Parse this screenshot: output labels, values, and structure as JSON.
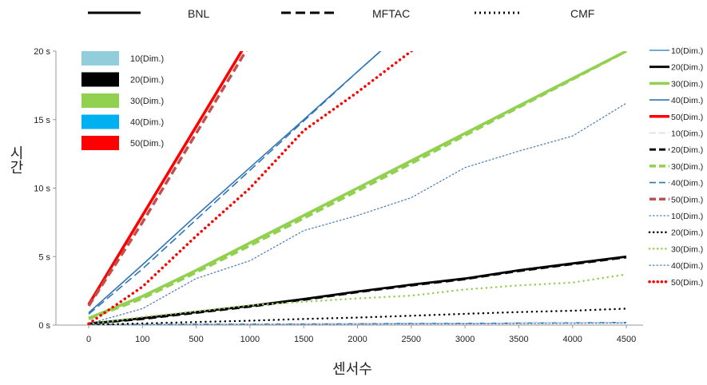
{
  "chart_data": {
    "type": "line",
    "xlabel": "센서수",
    "ylabel": "시간",
    "categories": [
      "0",
      "100",
      "500",
      "1000",
      "1500",
      "2000",
      "2500",
      "3000",
      "3500",
      "4000",
      "4500"
    ],
    "y_ticks": [
      "0 s",
      "5 s",
      "10 s",
      "15 s",
      "20 s"
    ],
    "ylim": [
      0,
      20
    ],
    "grid": false,
    "methods": [
      {
        "name": "BNL",
        "style": "solid"
      },
      {
        "name": "MFTAC",
        "style": "dashed"
      },
      {
        "name": "CMF",
        "style": "dotted"
      }
    ],
    "dimension_legend": [
      {
        "label": "10(Dim.)",
        "color": "#92cddc"
      },
      {
        "label": "20(Dim.)",
        "color": "#000000"
      },
      {
        "label": "30(Dim.)",
        "color": "#92d050"
      },
      {
        "label": "40(Dim.)",
        "color": "#00b0f0"
      },
      {
        "label": "50(Dim.)",
        "color": "#ff0000"
      }
    ],
    "series": [
      {
        "name": "10(Dim.)",
        "method": "BNL",
        "color": "#1f77b4",
        "width": 1.3,
        "style": "solid",
        "values": [
          0.05,
          0.06,
          0.07,
          0.08,
          0.09,
          0.1,
          0.12,
          0.13,
          0.15,
          0.17,
          0.2
        ]
      },
      {
        "name": "20(Dim.)",
        "method": "BNL",
        "color": "#000000",
        "width": 2.8,
        "style": "solid",
        "values": [
          0.1,
          0.5,
          0.95,
          1.4,
          1.9,
          2.45,
          2.95,
          3.4,
          4.0,
          4.5,
          5.0
        ]
      },
      {
        "name": "30(Dim.)",
        "method": "BNL",
        "color": "#92d050",
        "width": 3.5,
        "style": "solid",
        "values": [
          0.5,
          2.1,
          4.0,
          6.0,
          8.0,
          10.0,
          12.0,
          14.0,
          16.0,
          18.0,
          20.0
        ]
      },
      {
        "name": "40(Dim.)",
        "method": "BNL",
        "color": "#2e75b6",
        "width": 1.6,
        "style": "solid",
        "values": [
          0.9,
          4.4,
          8.0,
          11.5,
          15.0,
          18.5,
          22.0,
          null,
          null,
          null,
          null
        ]
      },
      {
        "name": "50(Dim.)",
        "method": "BNL",
        "color": "#ff0000",
        "width": 3.5,
        "style": "solid",
        "values": [
          1.5,
          8.0,
          14.5,
          21.0,
          null,
          null,
          null,
          null,
          null,
          null,
          null
        ]
      },
      {
        "name": "10(Dim.)",
        "method": "MFTAC",
        "color": "#d9d9d9",
        "width": 1.5,
        "style": "dashed",
        "values": [
          0.04,
          0.05,
          0.06,
          0.07,
          0.08,
          0.09,
          0.1,
          0.11,
          0.13,
          0.15,
          0.18
        ]
      },
      {
        "name": "20(Dim.)",
        "method": "MFTAC",
        "color": "#000000",
        "width": 2.8,
        "style": "dashed",
        "values": [
          0.1,
          0.45,
          0.9,
          1.35,
          1.85,
          2.4,
          2.9,
          3.35,
          3.95,
          4.45,
          4.95
        ]
      },
      {
        "name": "30(Dim.)",
        "method": "MFTAC",
        "color": "#92d050",
        "width": 3.5,
        "style": "dashed",
        "values": [
          0.45,
          1.95,
          3.85,
          5.8,
          7.8,
          9.8,
          11.8,
          13.85,
          15.9,
          17.95,
          20.0
        ]
      },
      {
        "name": "40(Dim.)",
        "method": "MFTAC",
        "color": "#2e75b6",
        "width": 1.6,
        "style": "dashed",
        "values": [
          0.8,
          4.1,
          7.7,
          11.3,
          14.9,
          18.5,
          22.0,
          null,
          null,
          null,
          null
        ]
      },
      {
        "name": "50(Dim.)",
        "method": "MFTAC",
        "color": "#c0504d",
        "width": 3.5,
        "style": "dashed",
        "values": [
          1.4,
          7.5,
          14.0,
          20.5,
          null,
          null,
          null,
          null,
          null,
          null,
          null
        ]
      },
      {
        "name": "10(Dim.)",
        "method": "CMF",
        "color": "#4f81bd",
        "width": 1.2,
        "style": "dotted",
        "values": [
          0.02,
          0.03,
          0.04,
          0.05,
          0.06,
          0.07,
          0.08,
          0.09,
          0.1,
          0.12,
          0.14
        ]
      },
      {
        "name": "20(Dim.)",
        "method": "CMF",
        "color": "#000000",
        "width": 2.5,
        "style": "dotted",
        "values": [
          0.02,
          0.12,
          0.22,
          0.32,
          0.45,
          0.55,
          0.68,
          0.82,
          0.95,
          1.05,
          1.2
        ]
      },
      {
        "name": "30(Dim.)",
        "method": "CMF",
        "color": "#92d050",
        "width": 2.5,
        "style": "dotted",
        "values": [
          0.05,
          0.6,
          1.0,
          1.45,
          1.7,
          1.95,
          2.15,
          2.6,
          2.9,
          3.1,
          3.7
        ]
      },
      {
        "name": "40(Dim.)",
        "method": "CMF",
        "color": "#4f81bd",
        "width": 1.3,
        "style": "dotted",
        "values": [
          0.1,
          1.2,
          3.4,
          4.7,
          6.9,
          8.0,
          9.3,
          11.5,
          12.7,
          13.8,
          16.2
        ]
      },
      {
        "name": "50(Dim.)",
        "method": "CMF",
        "color": "#ff0000",
        "width": 3.5,
        "style": "dotted",
        "values": [
          0.1,
          2.8,
          6.5,
          10.0,
          14.2,
          17.0,
          20.0,
          null,
          null,
          null,
          null
        ]
      }
    ]
  }
}
